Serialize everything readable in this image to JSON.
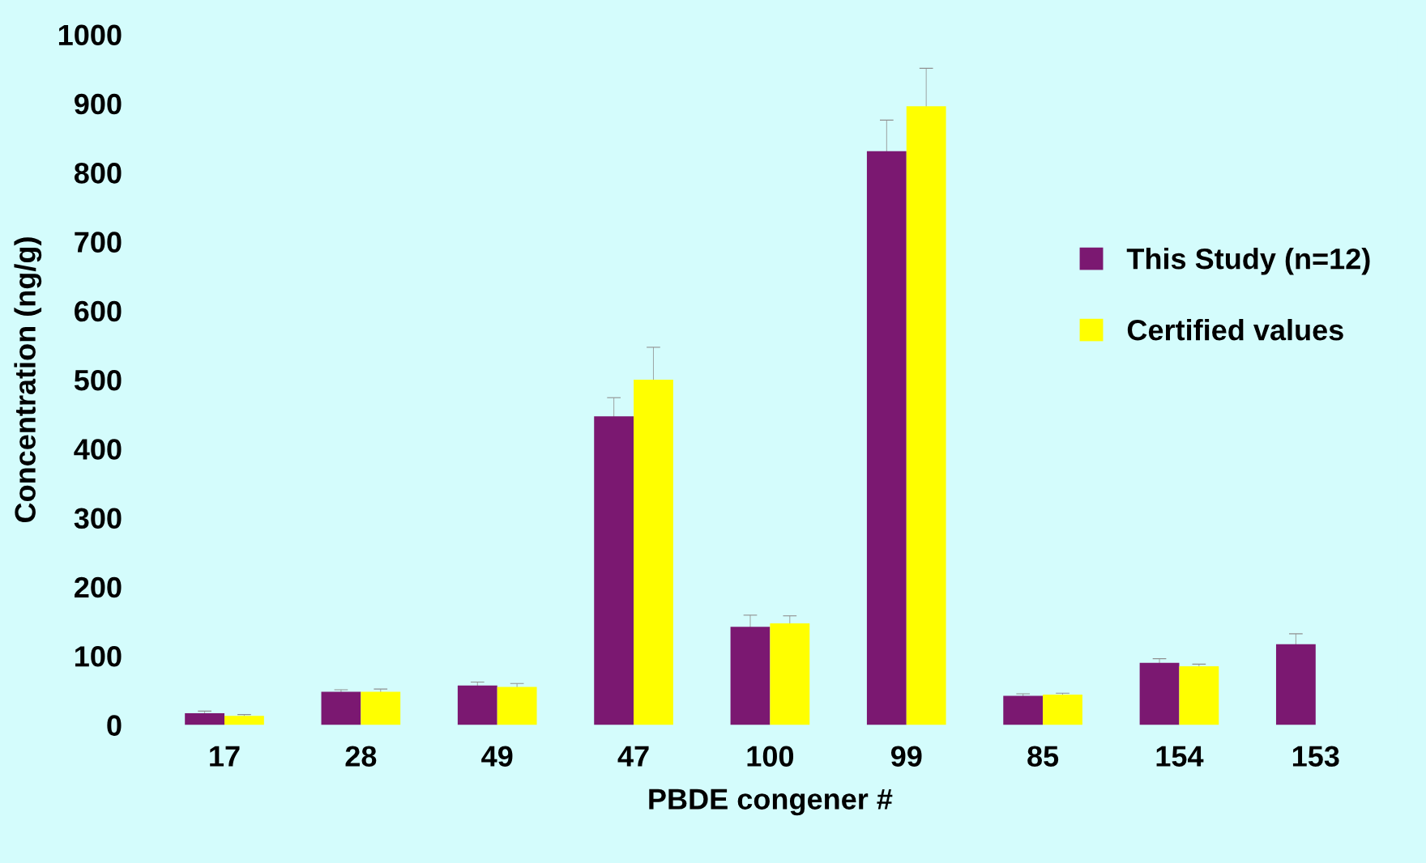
{
  "chart_data": {
    "type": "bar",
    "xlabel": "PBDE congener #",
    "ylabel": "Concentration (ng/g)",
    "categories": [
      "17",
      "28",
      "49",
      "47",
      "100",
      "99",
      "85",
      "154",
      "153"
    ],
    "series": [
      {
        "name": "This Study (n=12)",
        "color": "#7b1871",
        "values": [
          17,
          48,
          57,
          447,
          142,
          831,
          42,
          90,
          117
        ],
        "errors": [
          3,
          3,
          5,
          27,
          17,
          45,
          3,
          6,
          15
        ]
      },
      {
        "name": "Certified values",
        "color": "#ffff00",
        "values": [
          13,
          48,
          55,
          500,
          147,
          896,
          44,
          85,
          null
        ],
        "errors": [
          2,
          4,
          5,
          47,
          11,
          55,
          2,
          3,
          null
        ]
      }
    ],
    "ylim": [
      0,
      1000
    ],
    "yticks": [
      0,
      100,
      200,
      300,
      400,
      500,
      600,
      700,
      800,
      900,
      1000
    ],
    "grid": false,
    "legend": "right"
  }
}
